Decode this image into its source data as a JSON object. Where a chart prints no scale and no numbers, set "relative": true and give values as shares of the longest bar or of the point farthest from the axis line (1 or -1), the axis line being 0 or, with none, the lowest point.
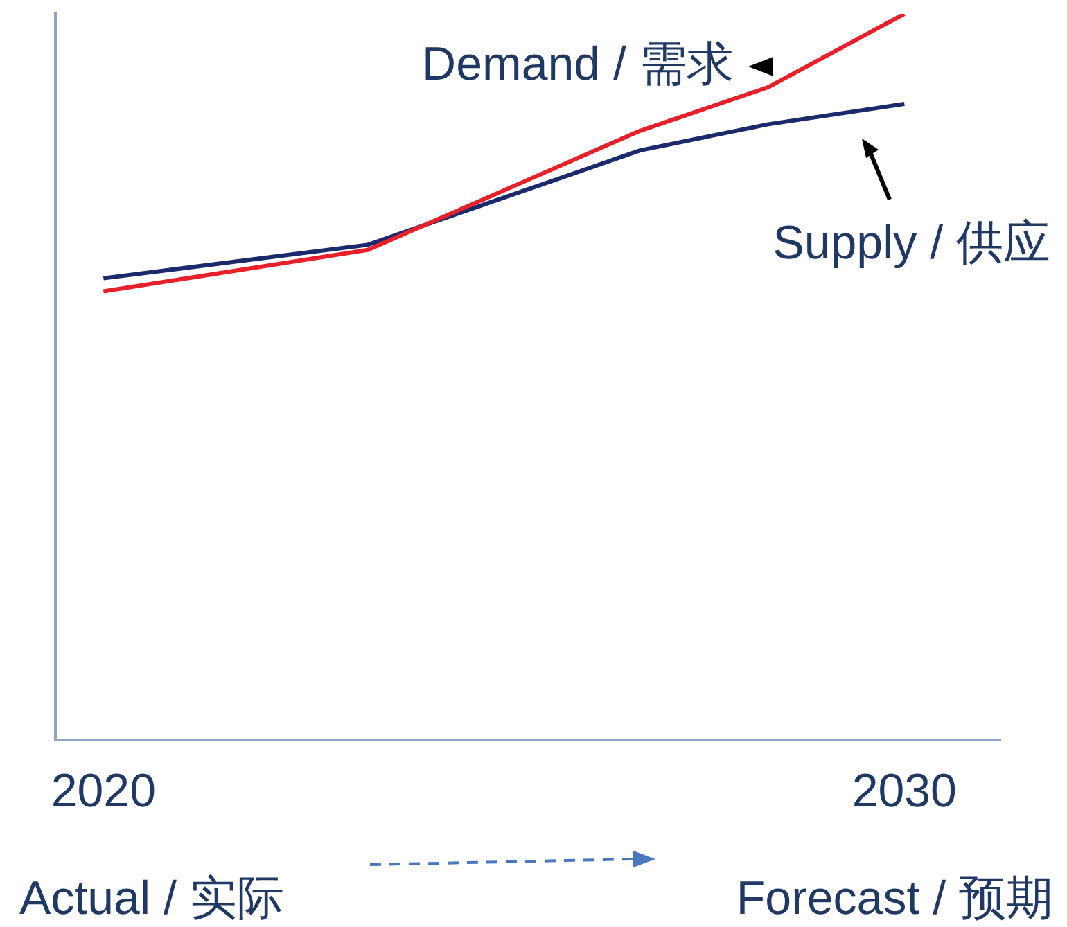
{
  "chart_data": {
    "type": "line",
    "relative": true,
    "x": [
      2020,
      2023.3,
      2026.7,
      2028.3,
      2030
    ],
    "xlim": [
      2019.4,
      2031.2
    ],
    "xticks": [
      2020,
      2030
    ],
    "tick_labels": "x",
    "grid": false,
    "legend": false,
    "marker": "none",
    "line_style": "solid",
    "series": [
      {
        "name": "Demand / 需求",
        "color": "#e8202a",
        "values": [
          0.618,
          0.675,
          0.839,
          0.899,
          1
        ]
      },
      {
        "name": "Supply / 供应",
        "color": "#1a2a6c",
        "values": [
          0.636,
          0.682,
          0.812,
          0.848,
          0.876
        ]
      }
    ],
    "annotations": [
      "Actual / 实际",
      "Forecast / 预期"
    ]
  }
}
